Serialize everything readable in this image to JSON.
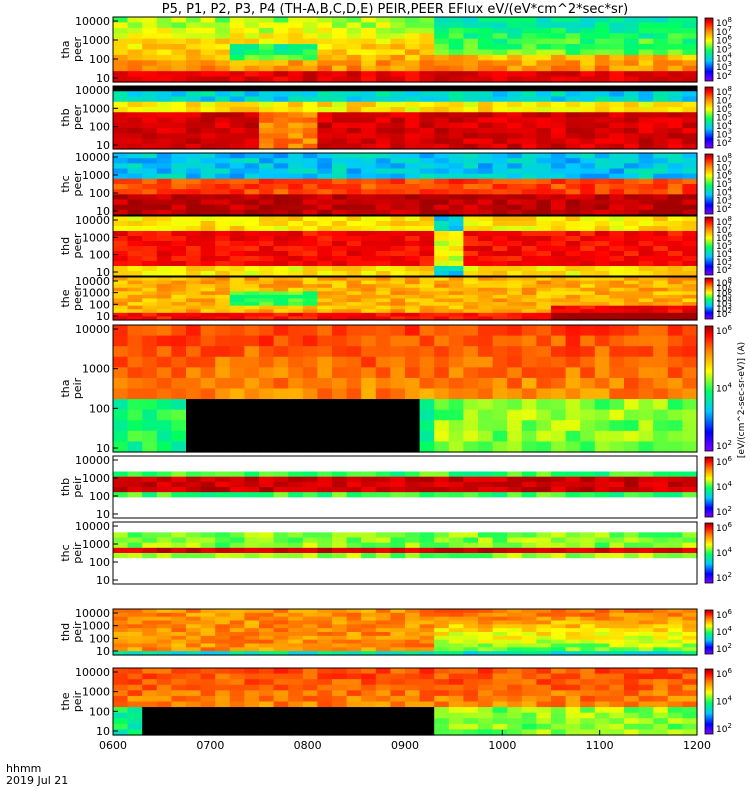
{
  "chart_data": {
    "type": "heatmap",
    "title": "P5, P1, P2, P3, P4 (TH-A,B,C,D,E) PEIR,PEER EFlux eV/(eV*cm^2*sec*sr)",
    "xlabel_line1": "hhmm",
    "xlabel_line2": "2019 Jul 21",
    "x_ticks": [
      "0600",
      "0700",
      "0800",
      "0900",
      "1000",
      "1100",
      "1200"
    ],
    "x_range": [
      "0600",
      "1200"
    ],
    "y_scale": "log",
    "colorbar_label": "[eV/(cm^2-sec-sr-eV)] (A)",
    "colormap": [
      "#7f00ff",
      "#0000ff",
      "#00c8ff",
      "#00ff60",
      "#ffff00",
      "#ff8000",
      "#ff0000",
      "#a00000"
    ],
    "panels": [
      {
        "label": "tha peer",
        "y_ticks": [
          "10000",
          "1000",
          "100",
          "10"
        ],
        "colorbar_ticks": [
          "10^8",
          "10^7",
          "10^6",
          "10^5",
          "10^4",
          "10^3",
          "10^2"
        ]
      },
      {
        "label": "thb peer",
        "y_ticks": [
          "10000",
          "1000",
          "100",
          "10"
        ],
        "colorbar_ticks": [
          "10^8",
          "10^7",
          "10^6",
          "10^5",
          "10^4",
          "10^3",
          "10^2"
        ]
      },
      {
        "label": "thc peer",
        "y_ticks": [
          "10000",
          "1000",
          "100",
          "10"
        ],
        "colorbar_ticks": [
          "10^8",
          "10^7",
          "10^6",
          "10^5",
          "10^4",
          "10^3",
          "10^2"
        ]
      },
      {
        "label": "thd peer",
        "y_ticks": [
          "10000",
          "1000",
          "100",
          "10"
        ],
        "colorbar_ticks": [
          "10^8",
          "10^7",
          "10^6",
          "10^5",
          "10^4",
          "10^3",
          "10^2"
        ]
      },
      {
        "label": "the peer",
        "y_ticks": [
          "10000",
          "1000",
          "100",
          "10"
        ],
        "colorbar_ticks": [
          "10^8",
          "10^7",
          "10^6",
          "10^5",
          "10^4",
          "10^3",
          "10^2"
        ]
      },
      {
        "label": "tha peir",
        "y_ticks": [
          "10000",
          "1000",
          "100",
          "10"
        ],
        "colorbar_ticks": [
          "10^6",
          "10^4",
          "10^2"
        ]
      },
      {
        "label": "thb peir",
        "y_ticks": [
          "10000",
          "1000",
          "100",
          "10"
        ],
        "colorbar_ticks": [
          "10^6",
          "10^4",
          "10^2"
        ]
      },
      {
        "label": "thc peir",
        "y_ticks": [
          "10000",
          "1000",
          "100",
          "10"
        ],
        "colorbar_ticks": [
          "10^6",
          "10^4",
          "10^2"
        ]
      },
      {
        "label": "thd peir",
        "y_ticks": [
          "10000",
          "1000",
          "100",
          "10"
        ],
        "colorbar_ticks": [
          "10^6",
          "10^4",
          "10^2"
        ]
      },
      {
        "label": "the peir",
        "y_ticks": [
          "10000",
          "1000",
          "100",
          "10"
        ],
        "colorbar_ticks": [
          "10^6",
          "10^4",
          "10^2"
        ]
      }
    ]
  }
}
